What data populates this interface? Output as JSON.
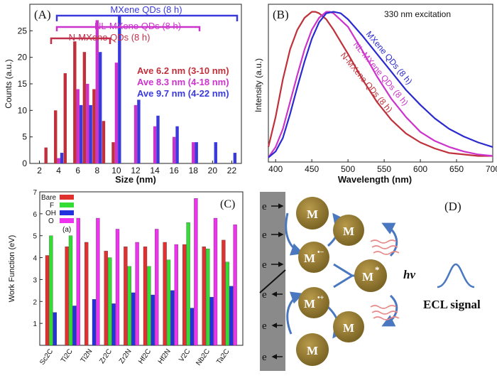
{
  "panelA": {
    "label": "(A)",
    "ylabel": "Counts (a.u.)",
    "xlabel": "Size (nm)",
    "brackets": [
      {
        "label": "MXene QDs (8 h)",
        "color": "#3a3adc"
      },
      {
        "label": "NL-MXene QDs (8 h)",
        "color": "#cc33cc"
      },
      {
        "label": "N-MXene QDs (8 h)",
        "color": "#c0304a"
      }
    ],
    "legend": [
      {
        "text": "Ave 6.2 nm (3-10 nm)",
        "color": "#c0303a"
      },
      {
        "text": "Ave 8.3 nm (4-18 nm)",
        "color": "#cc33cc"
      },
      {
        "text": "Ave 9.7 nm (4-22 nm)",
        "color": "#3a3adc"
      }
    ]
  },
  "panelB": {
    "label": "(B)",
    "note": "330 nm excitation",
    "ylabel": "Intensity (a.u.)",
    "xlabel": "Wavelength (nm)",
    "curve_labels": [
      {
        "text": "MXene QDs (8 h)",
        "color": "#2a2ad0"
      },
      {
        "text": "NL-MXene QDs (8 h)",
        "color": "#cc33cc"
      },
      {
        "text": "N-MXene QDs (8 h)",
        "color": "#c0303a"
      }
    ]
  },
  "panelC": {
    "label": "(C)",
    "sublabel": "(a)",
    "ylabel": "Work Function (eV)",
    "legend": [
      {
        "text": "Bare",
        "color": "#e03030"
      },
      {
        "text": "F",
        "color": "#33dd33"
      },
      {
        "text": "OH",
        "color": "#2233dd"
      },
      {
        "text": "O",
        "color": "#ee33ee"
      }
    ]
  },
  "panelD": {
    "label": "(D)",
    "electron": "e",
    "M": "M",
    "M_minus": "M",
    "M_plus": "M",
    "M_star": "M",
    "sup_minus": "•−",
    "sup_plus": "•+",
    "sup_star": "*",
    "hv": "hv",
    "signal": "ECL signal"
  },
  "chart_data": [
    {
      "type": "bar",
      "title": "",
      "xlabel": "Size (nm)",
      "ylabel": "Counts (a.u.)",
      "xlim": [
        1,
        23
      ],
      "ylim": [
        0,
        30
      ],
      "xticks": [
        2,
        4,
        6,
        8,
        10,
        12,
        14,
        16,
        18,
        20,
        22
      ],
      "yticks": [
        0,
        5,
        10,
        15,
        20,
        25
      ],
      "series": [
        {
          "name": "N-MXene QDs (8 h)",
          "color": "#c0303a",
          "x": [
            3,
            4,
            5,
            6,
            7,
            8,
            9,
            10
          ],
          "values": [
            3,
            10,
            17,
            23,
            21,
            14,
            8,
            4
          ]
        },
        {
          "name": "NL-MXene QDs (8 h)",
          "color": "#cc33cc",
          "x": [
            4,
            6,
            7,
            8,
            10,
            12,
            14,
            16,
            18
          ],
          "values": [
            1,
            14,
            15,
            27,
            19,
            11,
            7,
            5,
            4
          ]
        },
        {
          "name": "MXene QDs (8 h)",
          "color": "#3a3adc",
          "x": [
            4,
            6,
            7,
            8,
            10,
            12,
            14,
            16,
            18,
            20,
            22
          ],
          "values": [
            2,
            11,
            11,
            21,
            28,
            12,
            9,
            7,
            4,
            4,
            2
          ]
        }
      ]
    },
    {
      "type": "line",
      "title": "330 nm excitation",
      "xlabel": "Wavelength (nm)",
      "ylabel": "Intensity (a.u.)",
      "xlim": [
        390,
        700
      ],
      "ylim": [
        0,
        1.05
      ],
      "xticks": [
        400,
        450,
        500,
        550,
        600,
        650,
        700
      ],
      "series": [
        {
          "name": "N-MXene QDs (8 h)",
          "color": "#c0303a",
          "x": [
            390,
            400,
            410,
            420,
            430,
            440,
            450,
            455,
            460,
            470,
            480,
            500,
            520,
            540,
            560,
            580,
            600,
            620,
            640,
            660,
            680,
            700
          ],
          "values": [
            0.1,
            0.3,
            0.55,
            0.75,
            0.88,
            0.96,
            1.0,
            1.0,
            0.99,
            0.95,
            0.88,
            0.72,
            0.55,
            0.4,
            0.28,
            0.19,
            0.13,
            0.09,
            0.06,
            0.05,
            0.04,
            0.04
          ]
        },
        {
          "name": "NL-MXene QDs (8 h)",
          "color": "#cc33cc",
          "x": [
            390,
            400,
            410,
            420,
            430,
            440,
            450,
            460,
            470,
            475,
            480,
            500,
            520,
            540,
            560,
            580,
            600,
            620,
            640,
            660,
            680,
            700
          ],
          "values": [
            0.03,
            0.1,
            0.22,
            0.4,
            0.58,
            0.75,
            0.88,
            0.96,
            1.0,
            1.0,
            0.99,
            0.9,
            0.74,
            0.57,
            0.42,
            0.3,
            0.2,
            0.14,
            0.1,
            0.07,
            0.05,
            0.04
          ]
        },
        {
          "name": "MXene QDs (8 h)",
          "color": "#2a2ad0",
          "x": [
            390,
            400,
            410,
            420,
            430,
            440,
            450,
            460,
            470,
            480,
            490,
            500,
            520,
            540,
            560,
            580,
            600,
            620,
            640,
            660,
            680,
            700
          ],
          "values": [
            0.03,
            0.07,
            0.16,
            0.32,
            0.5,
            0.67,
            0.82,
            0.93,
            0.99,
            1.0,
            0.99,
            0.95,
            0.84,
            0.72,
            0.6,
            0.48,
            0.38,
            0.29,
            0.22,
            0.17,
            0.13,
            0.1
          ]
        }
      ]
    },
    {
      "type": "bar",
      "title": "",
      "xlabel": "",
      "ylabel": "Work Function (eV)",
      "ylim": [
        0,
        7
      ],
      "yticks": [
        1,
        2,
        3,
        4,
        5,
        6,
        7
      ],
      "categories": [
        "Sc2C",
        "Ti2C",
        "Ti2N",
        "Zr2C",
        "Zr2N",
        "Hf2C",
        "Hf2N",
        "V2C",
        "Nb2C",
        "Ta2C"
      ],
      "series": [
        {
          "name": "Bare",
          "color": "#e03030",
          "values": [
            4.1,
            4.5,
            4.7,
            4.3,
            4.5,
            4.5,
            4.7,
            4.6,
            4.5,
            4.8
          ]
        },
        {
          "name": "F",
          "color": "#33dd33",
          "values": [
            5.0,
            5.0,
            null,
            4.0,
            3.6,
            3.6,
            3.9,
            5.6,
            4.4,
            3.8
          ]
        },
        {
          "name": "OH",
          "color": "#2233dd",
          "values": [
            1.5,
            1.8,
            2.1,
            1.9,
            2.4,
            2.3,
            2.5,
            1.7,
            2.2,
            2.7
          ]
        },
        {
          "name": "O",
          "color": "#ee33ee",
          "values": [
            null,
            5.8,
            5.8,
            5.3,
            4.7,
            5.3,
            4.6,
            6.7,
            5.8,
            5.5
          ]
        }
      ]
    }
  ]
}
